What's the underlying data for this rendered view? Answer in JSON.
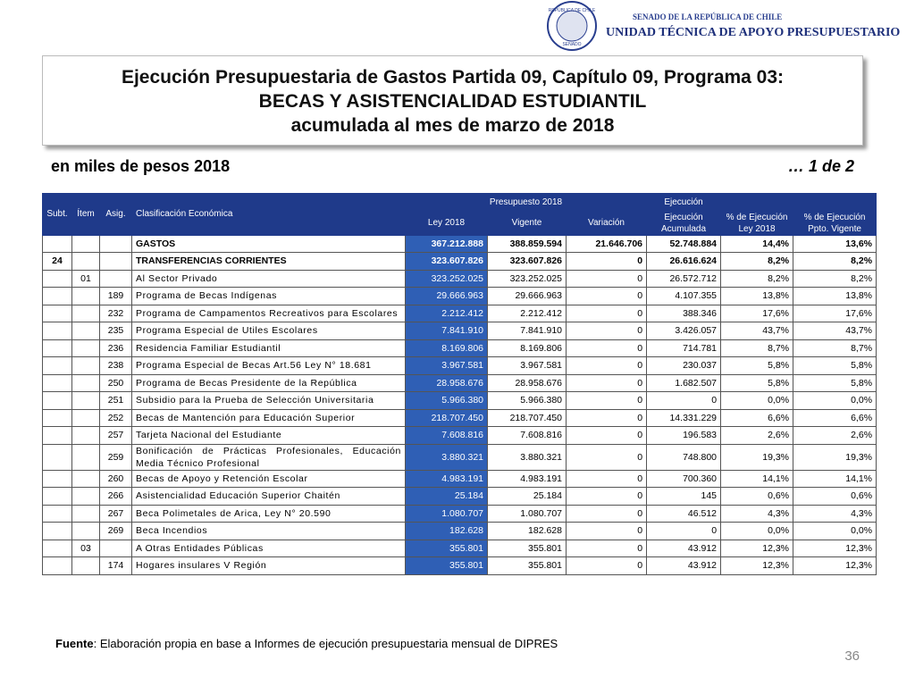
{
  "header": {
    "seal_top": "REPÚBLICA DE CHILE",
    "seal_bottom": "SENADO",
    "senate": "SENADO DE LA REPÚBLICA DE CHILE",
    "unit": "UNIDAD TÉCNICA DE APOYO PRESUPUESTARIO"
  },
  "title": {
    "line1": "Ejecución Presupuestaria de Gastos Partida 09, Capítulo 09, Programa 03:",
    "line2": "BECAS Y ASISTENCIALIDAD ESTUDIANTIL",
    "line3": "acumulada al mes de marzo de 2018"
  },
  "subtitle": {
    "left": "en miles de pesos 2018",
    "right": "… 1 de 2"
  },
  "table": {
    "group_budget": "Presupuesto 2018",
    "group_exec": "Ejecución",
    "columns": [
      "Subt.",
      "Ítem",
      "Asig.",
      "Clasificación Económica",
      "Ley 2018",
      "Vigente",
      "Variación",
      "Ejecución Acumulada",
      "% de Ejecución Ley 2018",
      "% de Ejecución Ppto. Vigente"
    ],
    "rows": [
      [
        null,
        null,
        null,
        "GASTOS",
        "367.212.888",
        "388.859.594",
        "21.646.706",
        "52.748.884",
        "14,4%",
        "13,6%"
      ],
      [
        "24",
        null,
        null,
        "TRANSFERENCIAS CORRIENTES",
        "323.607.826",
        "323.607.826",
        "0",
        "26.616.624",
        "8,2%",
        "8,2%"
      ],
      [
        null,
        "01",
        null,
        "Al Sector Privado",
        "323.252.025",
        "323.252.025",
        "0",
        "26.572.712",
        "8,2%",
        "8,2%"
      ],
      [
        null,
        null,
        "189",
        "Programa de Becas Indígenas",
        "29.666.963",
        "29.666.963",
        "0",
        "4.107.355",
        "13,8%",
        "13,8%"
      ],
      [
        null,
        null,
        "232",
        "Programa de Campamentos Recreativos para Escolares",
        "2.212.412",
        "2.212.412",
        "0",
        "388.346",
        "17,6%",
        "17,6%"
      ],
      [
        null,
        null,
        "235",
        "Programa Especial de Utiles Escolares",
        "7.841.910",
        "7.841.910",
        "0",
        "3.426.057",
        "43,7%",
        "43,7%"
      ],
      [
        null,
        null,
        "236",
        "Residencia Familiar Estudiantil",
        "8.169.806",
        "8.169.806",
        "0",
        "714.781",
        "8,7%",
        "8,7%"
      ],
      [
        null,
        null,
        "238",
        "Programa Especial de Becas Art.56 Ley N° 18.681",
        "3.967.581",
        "3.967.581",
        "0",
        "230.037",
        "5,8%",
        "5,8%"
      ],
      [
        null,
        null,
        "250",
        "Programa de Becas Presidente de la República",
        "28.958.676",
        "28.958.676",
        "0",
        "1.682.507",
        "5,8%",
        "5,8%"
      ],
      [
        null,
        null,
        "251",
        "Subsidio para la Prueba de Selección Universitaria",
        "5.966.380",
        "5.966.380",
        "0",
        "0",
        "0,0%",
        "0,0%"
      ],
      [
        null,
        null,
        "252",
        "Becas de Mantención para Educación Superior",
        "218.707.450",
        "218.707.450",
        "0",
        "14.331.229",
        "6,6%",
        "6,6%"
      ],
      [
        null,
        null,
        "257",
        "Tarjeta Nacional del Estudiante",
        "7.608.816",
        "7.608.816",
        "0",
        "196.583",
        "2,6%",
        "2,6%"
      ],
      [
        null,
        null,
        "259",
        "Bonificación de Prácticas Profesionales, Educación Media Técnico Profesional",
        "3.880.321",
        "3.880.321",
        "0",
        "748.800",
        "19,3%",
        "19,3%"
      ],
      [
        null,
        null,
        "260",
        "Becas de Apoyo y Retención Escolar",
        "4.983.191",
        "4.983.191",
        "0",
        "700.360",
        "14,1%",
        "14,1%"
      ],
      [
        null,
        null,
        "266",
        "Asistencialidad Educación Superior Chaitén",
        "25.184",
        "25.184",
        "0",
        "145",
        "0,6%",
        "0,6%"
      ],
      [
        null,
        null,
        "267",
        "Beca Polimetales de Arica, Ley N° 20.590",
        "1.080.707",
        "1.080.707",
        "0",
        "46.512",
        "4,3%",
        "4,3%"
      ],
      [
        null,
        null,
        "269",
        "Beca Incendios",
        "182.628",
        "182.628",
        "0",
        "0",
        "0,0%",
        "0,0%"
      ],
      [
        null,
        "03",
        null,
        "A Otras Entidades Públicas",
        "355.801",
        "355.801",
        "0",
        "43.912",
        "12,3%",
        "12,3%"
      ],
      [
        null,
        null,
        "174",
        "Hogares insulares V Región",
        "355.801",
        "355.801",
        "0",
        "43.912",
        "12,3%",
        "12,3%"
      ]
    ]
  },
  "footer": {
    "source_label": "Fuente",
    "source_text": ": Elaboración propia en base  a Informes de ejecución presupuestaria mensual de DIPRES",
    "page": "36"
  }
}
